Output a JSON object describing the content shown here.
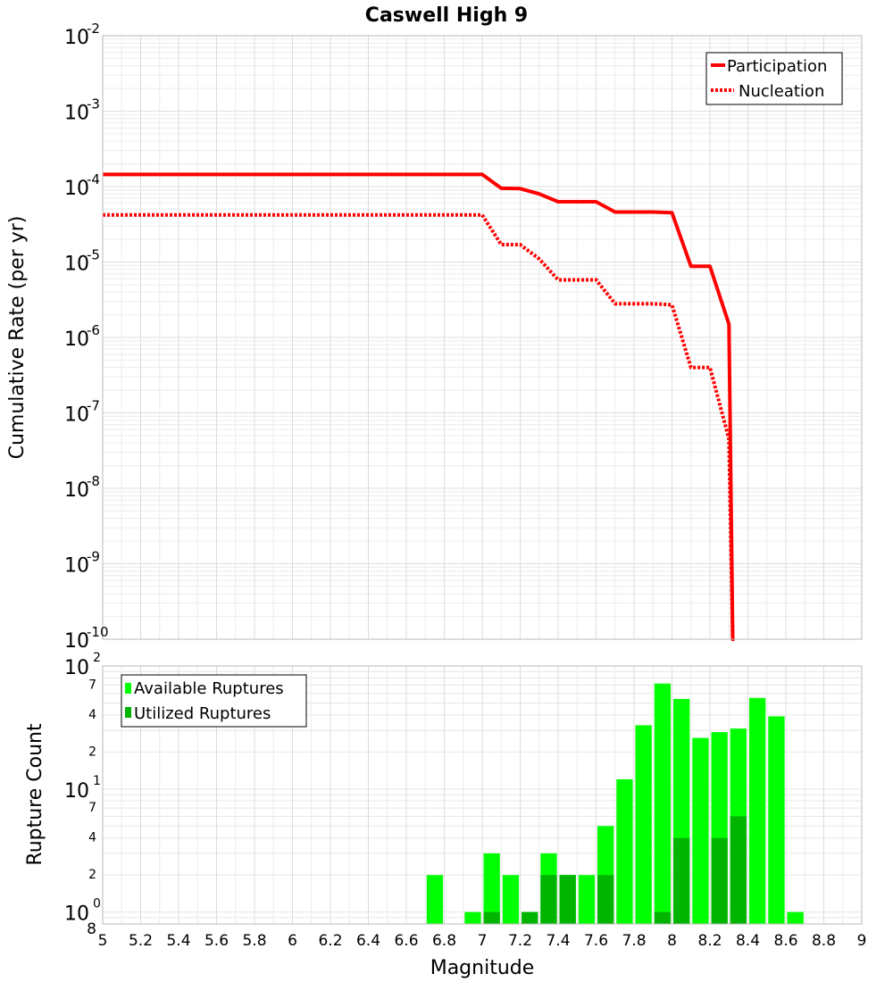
{
  "chart_data": [
    {
      "type": "line",
      "title": "Caswell High 9",
      "xlabel": "Magnitude",
      "ylabel": "Cumulative Rate (per yr)",
      "xlim": [
        5,
        9
      ],
      "ylim": [
        1e-10,
        0.01
      ],
      "y_scale": "log",
      "grid": true,
      "legend_placement": "top-right",
      "x_ticks": [
        "5",
        "5.2",
        "5.4",
        "5.6",
        "5.8",
        "6",
        "6.2",
        "6.4",
        "6.6",
        "6.8",
        "7",
        "7.2",
        "7.4",
        "7.6",
        "7.8",
        "8",
        "8.2",
        "8.4",
        "8.6",
        "8.8",
        "9"
      ],
      "y_ticks": [
        {
          "base": "10",
          "exp": "-2"
        },
        {
          "base": "10",
          "exp": "-3"
        },
        {
          "base": "10",
          "exp": "-4"
        },
        {
          "base": "10",
          "exp": "-5"
        },
        {
          "base": "10",
          "exp": "-6"
        },
        {
          "base": "10",
          "exp": "-7"
        },
        {
          "base": "10",
          "exp": "-8"
        },
        {
          "base": "10",
          "exp": "-9"
        },
        {
          "base": "10",
          "exp": "-10"
        }
      ],
      "series": [
        {
          "name": "Participation",
          "color": "#ff0000",
          "style": "solid",
          "x": [
            5.0,
            7.0,
            7.1,
            7.2,
            7.3,
            7.4,
            7.5,
            7.6,
            7.7,
            7.8,
            7.9,
            8.0,
            8.1,
            8.2,
            8.3,
            8.32,
            8.33
          ],
          "y": [
            0.000145,
            0.000145,
            9.5e-05,
            9.4e-05,
            8e-05,
            6.3e-05,
            6.3e-05,
            6.3e-05,
            4.6e-05,
            4.6e-05,
            4.6e-05,
            4.5e-05,
            8.8e-06,
            8.8e-06,
            1.5e-06,
            1e-10,
            1e-10
          ]
        },
        {
          "name": "Nucleation",
          "color": "#ff0000",
          "style": "dotted",
          "x": [
            5.0,
            7.0,
            7.1,
            7.2,
            7.3,
            7.4,
            7.5,
            7.6,
            7.7,
            7.8,
            7.9,
            8.0,
            8.1,
            8.2,
            8.3,
            8.32,
            8.33
          ],
          "y": [
            4.2e-05,
            4.2e-05,
            1.7e-05,
            1.7e-05,
            1.1e-05,
            5.8e-06,
            5.8e-06,
            5.8e-06,
            2.8e-06,
            2.8e-06,
            2.8e-06,
            2.7e-06,
            4e-07,
            4e-07,
            4.5e-08,
            1e-10,
            1e-10
          ]
        }
      ]
    },
    {
      "type": "bar",
      "xlabel": "Magnitude",
      "ylabel": "Rupture Count",
      "xlim": [
        5,
        9
      ],
      "y_scale": "log",
      "ylim": [
        0.8,
        100
      ],
      "grid": true,
      "legend_placement": "top-left",
      "y_major_ticks": [
        {
          "base": "10",
          "exp": "0"
        },
        {
          "base": "10",
          "exp": "1"
        },
        {
          "base": "10",
          "exp": "2"
        }
      ],
      "y_minor_ticks": [
        "8",
        "2",
        "4",
        "7",
        "2",
        "4",
        "7"
      ],
      "categories": [
        "6.75",
        "6.85",
        "6.95",
        "7.05",
        "7.15",
        "7.25",
        "7.35",
        "7.45",
        "7.55",
        "7.65",
        "7.75",
        "7.85",
        "7.95",
        "8.05",
        "8.15",
        "8.25",
        "8.35",
        "8.45",
        "8.55",
        "8.65"
      ],
      "series": [
        {
          "name": "Available Ruptures",
          "color": "#00ff00",
          "values": [
            2,
            0,
            1,
            3,
            2,
            1,
            3,
            2,
            2,
            5,
            12,
            33,
            72,
            54,
            26,
            29,
            31,
            55,
            39,
            1
          ]
        },
        {
          "name": "Utilized Ruptures",
          "color": "#00b400",
          "values": [
            0,
            0,
            0,
            1,
            0,
            1,
            2,
            2,
            0,
            2,
            0,
            0,
            1,
            4,
            0,
            4,
            6,
            0,
            0,
            0
          ]
        }
      ]
    }
  ]
}
